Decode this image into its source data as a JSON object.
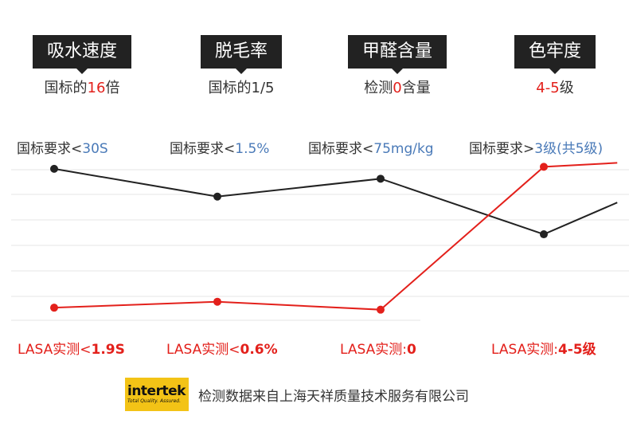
{
  "metrics": [
    {
      "title": "吸水速度",
      "sub_prefix": "国标的",
      "sub_value": "16",
      "sub_suffix": "倍"
    },
    {
      "title": "脱毛率",
      "sub_prefix": "国标的1/5",
      "sub_value": "",
      "sub_suffix": ""
    },
    {
      "title": "甲醛含量",
      "sub_prefix": "检测",
      "sub_value": "0",
      "sub_suffix": "含量"
    },
    {
      "title": "色牢度",
      "sub_prefix": "",
      "sub_value": "4-5",
      "sub_suffix": "级"
    }
  ],
  "requirements": [
    {
      "prefix": "国标要求<",
      "value": "30S"
    },
    {
      "prefix": "国标要求<",
      "value": "1.5%"
    },
    {
      "prefix": "国标要求<",
      "value": "75mg/kg"
    },
    {
      "prefix": "国标要求>",
      "value": "3级(共5级)"
    }
  ],
  "lasa": [
    {
      "prefix": "LASA实测<",
      "value": "1.9S"
    },
    {
      "prefix": "LASA实测<",
      "value": "0.6%"
    },
    {
      "prefix": "LASA实测:",
      "value": "0"
    },
    {
      "prefix": "LASA实测:",
      "value": "4-5级"
    }
  ],
  "chart_data": {
    "type": "line",
    "categories": [
      "吸水速度",
      "脱毛率",
      "甲醛含量",
      "色牢度"
    ],
    "series": [
      {
        "color": "#222222",
        "values": [
          0.88,
          0.74,
          0.83,
          0.55,
          0.71
        ]
      },
      {
        "color": "#e3201b",
        "values": [
          0.18,
          0.21,
          0.17,
          0.89,
          0.91
        ]
      }
    ],
    "x": [
      0,
      1,
      2,
      3,
      3.45
    ],
    "ylim": [
      0,
      1
    ],
    "grid": true
  },
  "footer": {
    "logo_word": "intertek",
    "logo_tagline": "Total Quality. Assured.",
    "text": "检测数据来自上海天祥质量技术服务有限公司"
  }
}
